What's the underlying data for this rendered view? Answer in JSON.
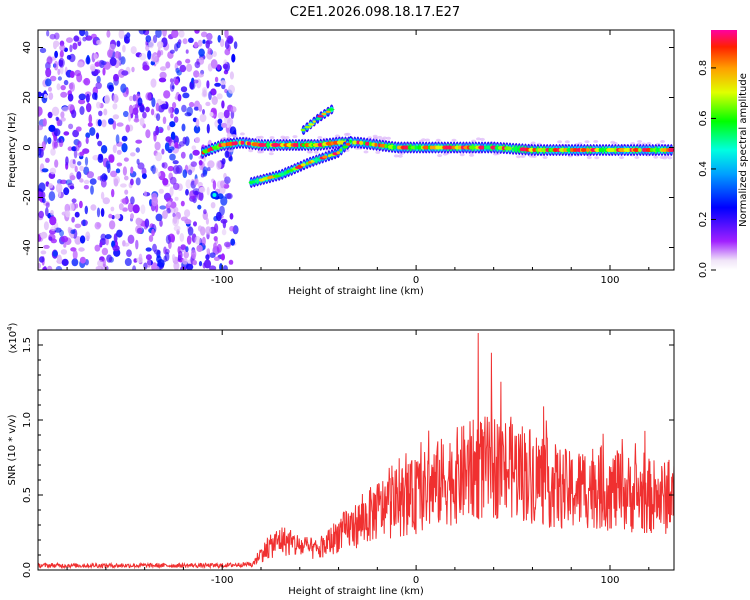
{
  "title": "C2E1.2026.098.18.17.E27",
  "chart_data": [
    {
      "type": "heatmap",
      "xlabel": "Height of straight line (km)",
      "ylabel": "Frequency (Hz)",
      "xlim": [
        -195,
        133
      ],
      "ylim": [
        -49,
        47
      ],
      "xticks": [
        -100,
        0,
        100
      ],
      "xtick_labels": [
        "-100",
        "0",
        "100"
      ],
      "yticks": [
        -40,
        -20,
        0,
        20,
        40
      ],
      "ytick_labels": [
        "-40",
        "-20",
        "0",
        "20",
        "40"
      ],
      "noise_region_x": [
        -195,
        -93
      ],
      "main_trace": [
        {
          "x": -110,
          "y": -2
        },
        {
          "x": -100,
          "y": 1
        },
        {
          "x": -90,
          "y": 2
        },
        {
          "x": -80,
          "y": 1
        },
        {
          "x": -70,
          "y": 1
        },
        {
          "x": -60,
          "y": 1
        },
        {
          "x": -50,
          "y": 1
        },
        {
          "x": -40,
          "y": 2
        },
        {
          "x": -30,
          "y": 2
        },
        {
          "x": -20,
          "y": 1
        },
        {
          "x": -10,
          "y": 0
        },
        {
          "x": 0,
          "y": 0
        },
        {
          "x": 20,
          "y": 0
        },
        {
          "x": 40,
          "y": 0
        },
        {
          "x": 60,
          "y": -1
        },
        {
          "x": 80,
          "y": -1
        },
        {
          "x": 100,
          "y": -1
        },
        {
          "x": 120,
          "y": -1
        },
        {
          "x": 133,
          "y": -1
        }
      ],
      "branch_lower": [
        {
          "x": -85,
          "y": -14
        },
        {
          "x": -70,
          "y": -11
        },
        {
          "x": -55,
          "y": -6
        },
        {
          "x": -40,
          "y": -2
        },
        {
          "x": -33,
          "y": 3
        }
      ],
      "branch_upper": [
        {
          "x": -58,
          "y": 7
        },
        {
          "x": -50,
          "y": 12
        },
        {
          "x": -42,
          "y": 16
        }
      ],
      "colorbar": {
        "label": "Normalized spectral amplitude",
        "range": [
          0.0,
          0.95
        ],
        "ticks": [
          0.0,
          0.2,
          0.4,
          0.6,
          0.8
        ],
        "tick_labels": [
          "0.0",
          "0.2",
          "0.4",
          "0.6",
          "0.8"
        ],
        "colormap": "rainbow"
      }
    },
    {
      "type": "line",
      "xlabel": "Height of straight line (km)",
      "ylabel": "SNR (10 * v/v)",
      "yscale_note": "(x10",
      "yscale_exp": "4",
      "xlim": [
        -195,
        133
      ],
      "ylim": [
        0.0,
        1.6
      ],
      "xticks": [
        -100,
        0,
        100
      ],
      "xtick_labels": [
        "-100",
        "0",
        "100"
      ],
      "yticks": [
        0.0,
        0.5,
        1.0,
        1.5
      ],
      "ytick_labels": [
        "0.0",
        "0.5",
        "1.0",
        "1.5"
      ],
      "color": "#f03030",
      "envelope": [
        {
          "x": -195,
          "y": 0.03
        },
        {
          "x": -100,
          "y": 0.03
        },
        {
          "x": -85,
          "y": 0.04
        },
        {
          "x": -80,
          "y": 0.15
        },
        {
          "x": -70,
          "y": 0.28
        },
        {
          "x": -60,
          "y": 0.22
        },
        {
          "x": -50,
          "y": 0.18
        },
        {
          "x": -40,
          "y": 0.33
        },
        {
          "x": -30,
          "y": 0.42
        },
        {
          "x": -20,
          "y": 0.55
        },
        {
          "x": -10,
          "y": 0.62
        },
        {
          "x": 0,
          "y": 0.68
        },
        {
          "x": 10,
          "y": 0.78
        },
        {
          "x": 20,
          "y": 0.86
        },
        {
          "x": 30,
          "y": 0.92
        },
        {
          "x": 40,
          "y": 0.95
        },
        {
          "x": 50,
          "y": 0.93
        },
        {
          "x": 60,
          "y": 0.88
        },
        {
          "x": 70,
          "y": 0.78
        },
        {
          "x": 80,
          "y": 0.72
        },
        {
          "x": 90,
          "y": 0.78
        },
        {
          "x": 100,
          "y": 0.74
        },
        {
          "x": 110,
          "y": 0.7
        },
        {
          "x": 120,
          "y": 0.68
        },
        {
          "x": 133,
          "y": 0.65
        }
      ],
      "peak": {
        "x": 32,
        "y": 1.58
      }
    }
  ]
}
